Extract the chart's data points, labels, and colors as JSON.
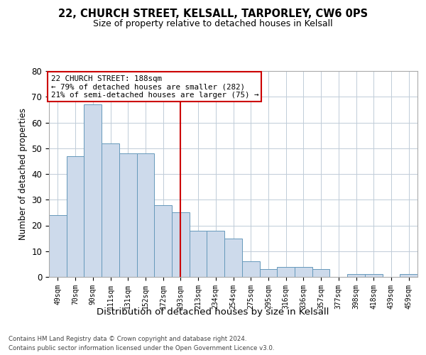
{
  "title1": "22, CHURCH STREET, KELSALL, TARPORLEY, CW6 0PS",
  "title2": "Size of property relative to detached houses in Kelsall",
  "xlabel": "Distribution of detached houses by size in Kelsall",
  "ylabel": "Number of detached properties",
  "categories": [
    "49sqm",
    "70sqm",
    "90sqm",
    "111sqm",
    "131sqm",
    "152sqm",
    "172sqm",
    "193sqm",
    "213sqm",
    "234sqm",
    "254sqm",
    "275sqm",
    "295sqm",
    "316sqm",
    "336sqm",
    "357sqm",
    "377sqm",
    "398sqm",
    "418sqm",
    "439sqm",
    "459sqm"
  ],
  "values": [
    24,
    47,
    67,
    52,
    48,
    48,
    28,
    25,
    18,
    18,
    15,
    6,
    3,
    4,
    4,
    3,
    0,
    1,
    1,
    0,
    1
  ],
  "bar_color": "#cddaeb",
  "bar_edge_color": "#6699bb",
  "highlight_index": 7,
  "highlight_color": "#cc0000",
  "annotation_title": "22 CHURCH STREET: 188sqm",
  "annotation_line1": "← 79% of detached houses are smaller (282)",
  "annotation_line2": "21% of semi-detached houses are larger (75) →",
  "annotation_box_color": "#ffffff",
  "annotation_box_edge": "#cc0000",
  "ylim": [
    0,
    80
  ],
  "yticks": [
    0,
    10,
    20,
    30,
    40,
    50,
    60,
    70,
    80
  ],
  "footer1": "Contains HM Land Registry data © Crown copyright and database right 2024.",
  "footer2": "Contains public sector information licensed under the Open Government Licence v3.0.",
  "bg_color": "#ffffff",
  "grid_color": "#c0ccd8"
}
